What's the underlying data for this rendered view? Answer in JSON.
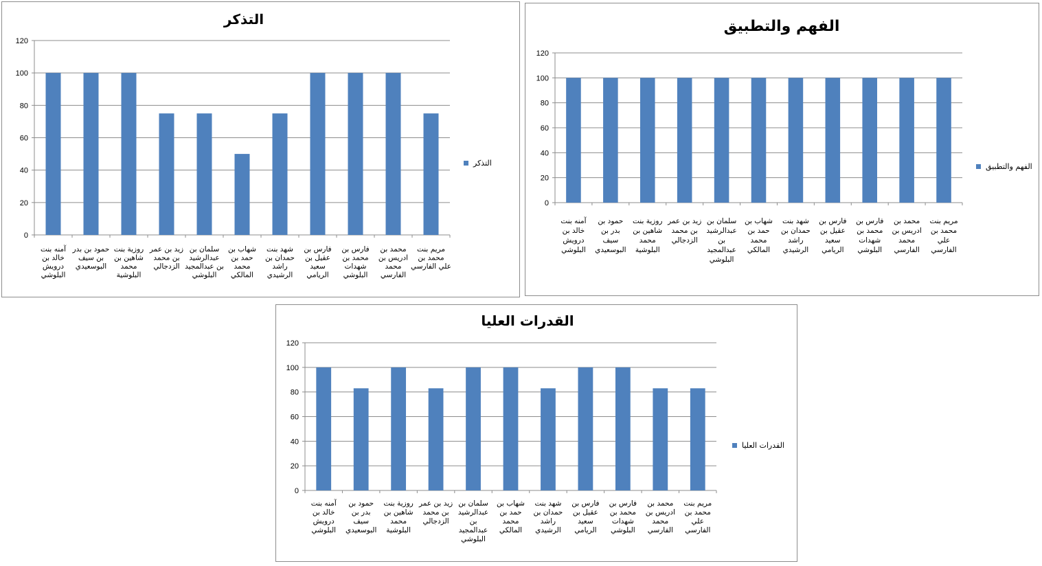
{
  "chart_data": [
    {
      "type": "bar",
      "title": "التذكر",
      "categories": [
        [
          "آمنه بنت",
          "خالد بن",
          "درويش",
          "البلوشي"
        ],
        [
          "حمود بن بدر",
          "بن سيف",
          "البوسعيدي"
        ],
        [
          "روزية بنت",
          "شاهين بن",
          "محمد",
          "البلوشية"
        ],
        [
          "زيد بن عمر",
          "بن محمد",
          "الزدجالي"
        ],
        [
          "سلمان بن",
          "عبدالرشيد",
          "بن عبدالمجيد",
          "البلوشي"
        ],
        [
          "شهاب بن",
          "حمد بن",
          "محمد",
          "المالكي"
        ],
        [
          "شهد بنت",
          "حمدان بن",
          "راشد",
          "الرشيدي"
        ],
        [
          "فارس بن",
          "عقيل بن",
          "سعيد",
          "الريامي"
        ],
        [
          "فارس بن",
          "محمد بن",
          "شهدات",
          "البلوشي"
        ],
        [
          "محمد بن",
          "ادريس بن",
          "محمد",
          "الفارسي"
        ],
        [
          "مريم بنت",
          "محمد بن",
          "علي الفارسي"
        ]
      ],
      "series": [
        {
          "name": "التذكر",
          "values": [
            100,
            100,
            100,
            75,
            75,
            50,
            75,
            100,
            100,
            100,
            75
          ]
        }
      ],
      "ylim": [
        0,
        120
      ],
      "yticks": [
        0,
        20,
        40,
        60,
        80,
        100,
        120
      ],
      "grid": true,
      "legend": "right",
      "color": "#4f81bd"
    },
    {
      "type": "bar",
      "title": "الفهم والتطبيق",
      "categories": [
        [
          "آمنه بنت",
          "خالد بن",
          "درويش",
          "البلوشي"
        ],
        [
          "حمود بن",
          "بدر بن",
          "سيف",
          "البوسعيدي"
        ],
        [
          "روزية بنت",
          "شاهين بن",
          "محمد",
          "البلوشية"
        ],
        [
          "زيد بن عمر",
          "بن محمد",
          "الزدجالي"
        ],
        [
          "سلمان بن",
          "عبدالرشيد",
          "بن",
          "عبدالمجيد",
          "البلوشي"
        ],
        [
          "شهاب بن",
          "حمد بن",
          "محمد",
          "المالكي"
        ],
        [
          "شهد بنت",
          "حمدان بن",
          "راشد",
          "الرشيدي"
        ],
        [
          "فارس بن",
          "عقيل بن",
          "سعيد",
          "الريامي"
        ],
        [
          "فارس بن",
          "محمد بن",
          "شهدات",
          "البلوشي"
        ],
        [
          "محمد بن",
          "ادريس بن",
          "محمد",
          "الفارسي"
        ],
        [
          "مريم بنت",
          "محمد بن",
          "علي",
          "الفارسي"
        ]
      ],
      "series": [
        {
          "name": "الفهم والتطبيق",
          "values": [
            100,
            100,
            100,
            100,
            100,
            100,
            100,
            100,
            100,
            100,
            100
          ]
        }
      ],
      "ylim": [
        0,
        120
      ],
      "yticks": [
        0,
        20,
        40,
        60,
        80,
        100,
        120
      ],
      "grid": true,
      "legend": "right",
      "color": "#4f81bd"
    },
    {
      "type": "bar",
      "title": "القدرات العليا",
      "categories": [
        [
          "آمنه بنت",
          "خالد بن",
          "درويش",
          "البلوشي"
        ],
        [
          "حمود بن",
          "بدر بن",
          "سيف",
          "البوسعيدي"
        ],
        [
          "روزية بنت",
          "شاهين بن",
          "محمد",
          "البلوشية"
        ],
        [
          "زيد بن عمر",
          "بن محمد",
          "الزدجالي"
        ],
        [
          "سلمان بن",
          "عبدالرشيد",
          "بن",
          "عبدالمجيد",
          "البلوشي"
        ],
        [
          "شهاب بن",
          "حمد بن",
          "محمد",
          "المالكي"
        ],
        [
          "شهد بنت",
          "حمدان بن",
          "راشد",
          "الرشيدي"
        ],
        [
          "فارس بن",
          "عقيل بن",
          "سعيد",
          "الريامي"
        ],
        [
          "فارس بن",
          "محمد بن",
          "شهدات",
          "البلوشي"
        ],
        [
          "محمد بن",
          "ادريس بن",
          "محمد",
          "الفارسي"
        ],
        [
          "مريم بنت",
          "محمد بن",
          "علي",
          "الفارسي"
        ]
      ],
      "series": [
        {
          "name": "القدرات العليا",
          "values": [
            100,
            83,
            100,
            83,
            100,
            100,
            83,
            100,
            100,
            83,
            83
          ]
        }
      ],
      "ylim": [
        0,
        120
      ],
      "yticks": [
        0,
        20,
        40,
        60,
        80,
        100,
        120
      ],
      "grid": true,
      "legend": "right",
      "color": "#4f81bd"
    }
  ]
}
